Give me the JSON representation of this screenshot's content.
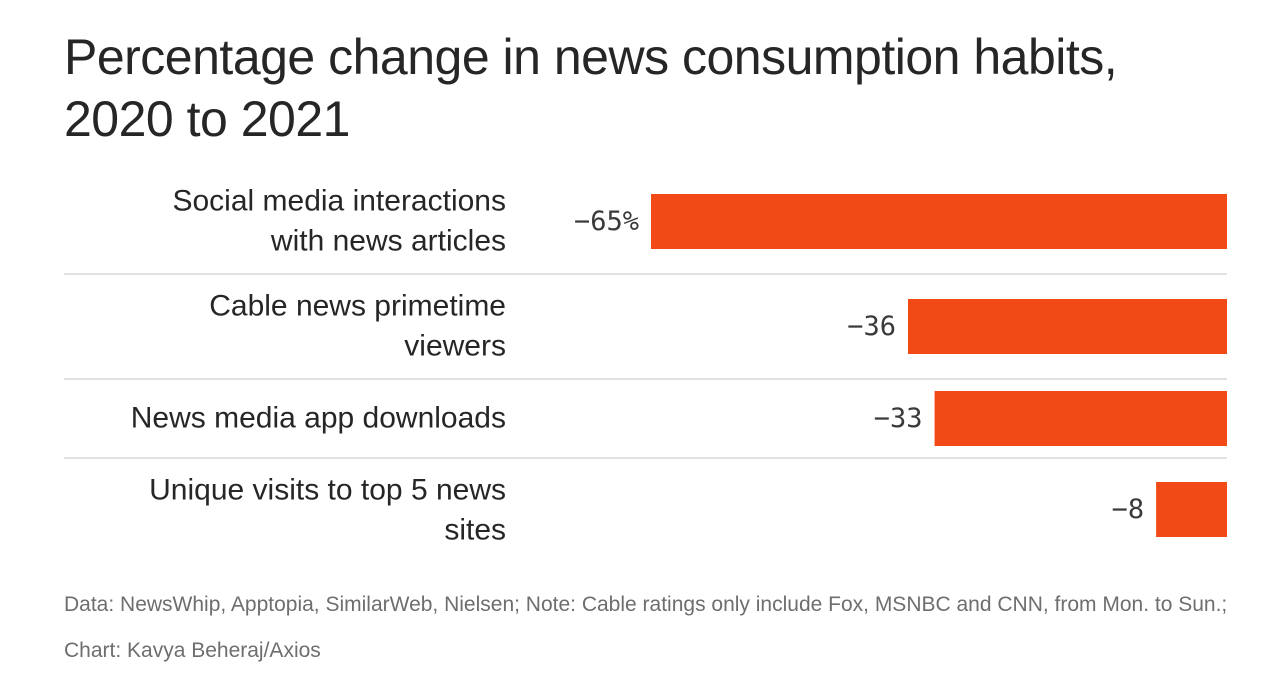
{
  "chart_data": {
    "type": "bar",
    "orientation": "horizontal",
    "title": "Percentage change in news consumption habits, 2020 to 2021",
    "categories": [
      [
        "Social media interactions",
        "with news articles"
      ],
      [
        "Cable news primetime",
        "viewers"
      ],
      [
        "News media app downloads"
      ],
      [
        "Unique visits to top 5 news",
        "sites"
      ]
    ],
    "values": [
      -65,
      -36,
      -33,
      -8
    ],
    "value_labels": [
      "−65%",
      "−36",
      "−33",
      "−8"
    ],
    "xlim": [
      -65,
      0
    ],
    "grid": false,
    "bar_color": "#f24a16",
    "separator_color": "#e2e2e2"
  },
  "footnote": "Data: NewsWhip, Apptopia, SimilarWeb, Nielsen; Note: Cable ratings only include Fox, MSNBC and CNN, from Mon. to Sun.; Chart: Kavya Beheraj/Axios"
}
